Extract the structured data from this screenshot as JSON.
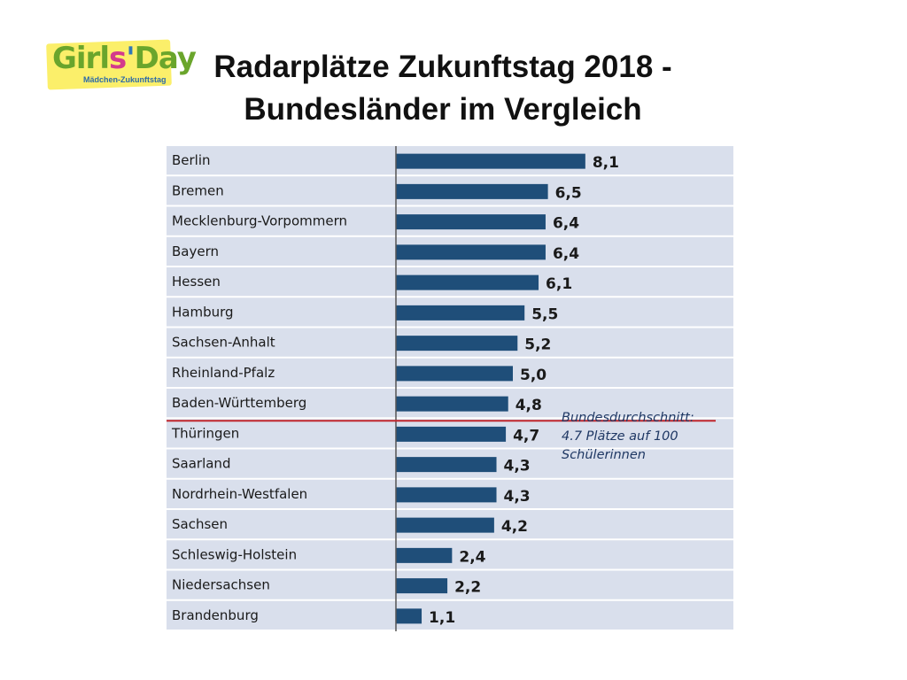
{
  "logo": {
    "word_parts": [
      "Girl",
      "s",
      "'",
      "Day"
    ],
    "subtitle": "Mädchen-Zukunftstag"
  },
  "title": {
    "line1": "Radarplätze Zukunftstag 2018 -",
    "line2": "Bundesländer im Vergleich"
  },
  "annotation": {
    "line1": "Bundesdurchschnitt:",
    "line2": "4.7 Plätze auf 100",
    "line3": "Schülerinnen"
  },
  "colors": {
    "bar": "#1f4e79",
    "row_bg": "#d9dfec",
    "axis": "#555555",
    "avg_line": "#c0262d"
  },
  "chart_data": {
    "type": "bar",
    "orientation": "horizontal",
    "title": "Radarplätze Zukunftstag 2018 - Bundesländer im Vergleich",
    "categories": [
      "Berlin",
      "Bremen",
      "Mecklenburg-Vorpommern",
      "Bayern",
      "Hessen",
      "Hamburg",
      "Sachsen-Anhalt",
      "Rheinland-Pfalz",
      "Baden-Württemberg",
      "Thüringen",
      "Saarland",
      "Nordrhein-Westfalen",
      "Sachsen",
      "Schleswig-Holstein",
      "Niedersachsen",
      "Brandenburg"
    ],
    "values": [
      8.1,
      6.5,
      6.4,
      6.4,
      6.1,
      5.5,
      5.2,
      5.0,
      4.8,
      4.7,
      4.3,
      4.3,
      4.2,
      2.4,
      2.2,
      1.1
    ],
    "value_labels": [
      "8,1",
      "6,5",
      "6,4",
      "6,4",
      "6,1",
      "5,5",
      "5,2",
      "5,0",
      "4,8",
      "4,7",
      "4,3",
      "4,3",
      "4,2",
      "2,4",
      "2,2",
      "1,1"
    ],
    "average": 4.7,
    "xlim": [
      0,
      10
    ],
    "legend": "none"
  }
}
